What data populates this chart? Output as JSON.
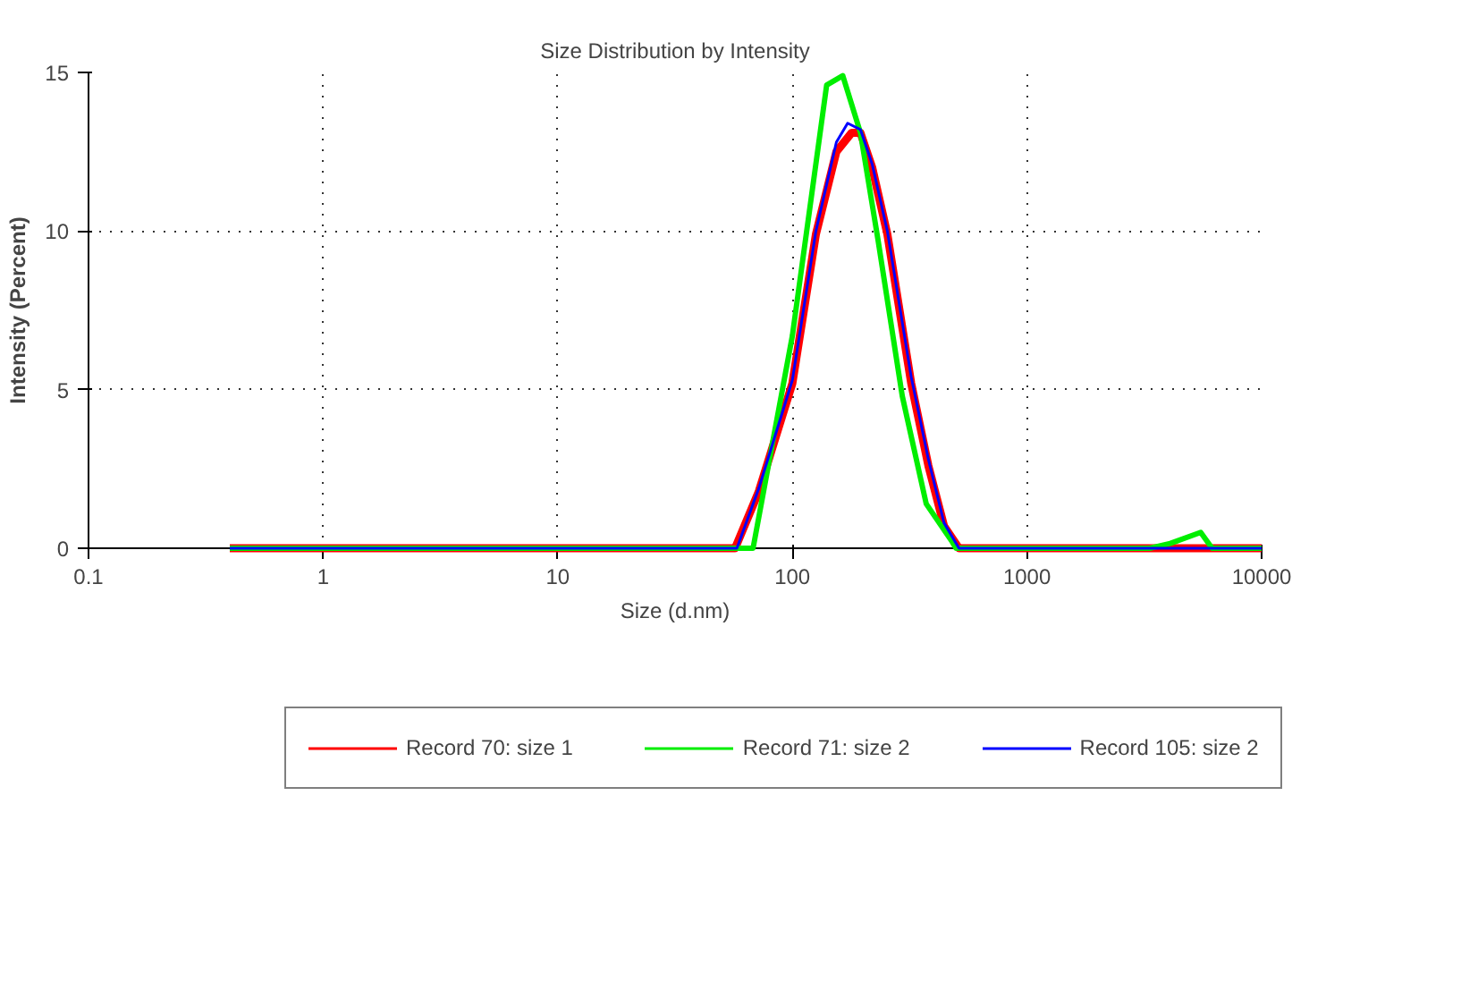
{
  "chart_data": {
    "type": "line",
    "title": "Size Distribution by Intensity",
    "xlabel": "Size (d.nm)",
    "ylabel": "Intensity (Percent)",
    "log": "x",
    "xlim": [
      0.1,
      10000
    ],
    "xticks": [
      0.1,
      1,
      10,
      100,
      1000,
      10000
    ],
    "ylim": [
      0,
      15
    ],
    "yticks": [
      0,
      5,
      10,
      15
    ],
    "grid": true,
    "legend": "bottom",
    "marker": "none",
    "line_style": "solid",
    "series": [
      {
        "name": "Record 70: size 1",
        "color": "#ff0000",
        "x": [
          0.4,
          57,
          72,
          100,
          126,
          154,
          179,
          195,
          219,
          254,
          321,
          380,
          443,
          513,
          10000
        ],
        "values": [
          0,
          0,
          1.8,
          5.2,
          9.9,
          12.5,
          13.1,
          13.1,
          12.0,
          9.9,
          5.2,
          2.6,
          0.7,
          0,
          0
        ]
      },
      {
        "name": "Record 71: size 2",
        "color": "#00ee00",
        "x": [
          0.4,
          68,
          100,
          140,
          164,
          195,
          232,
          294,
          372,
          480,
          498,
          3340,
          4080,
          5500,
          6150,
          10000
        ],
        "values": [
          0,
          0,
          6.7,
          14.6,
          14.9,
          13.1,
          9.7,
          4.8,
          1.4,
          0.2,
          0,
          0,
          0.15,
          0.5,
          0,
          0
        ]
      },
      {
        "name": "Record 105: size 2",
        "color": "#0000ff",
        "x": [
          0.4,
          58,
          72,
          100,
          126,
          154,
          172,
          195,
          219,
          254,
          321,
          380,
          443,
          513,
          10000
        ],
        "values": [
          0,
          0,
          1.9,
          5.3,
          10.0,
          12.8,
          13.4,
          13.2,
          12.1,
          10.0,
          5.4,
          2.8,
          0.8,
          0,
          0
        ]
      }
    ]
  }
}
